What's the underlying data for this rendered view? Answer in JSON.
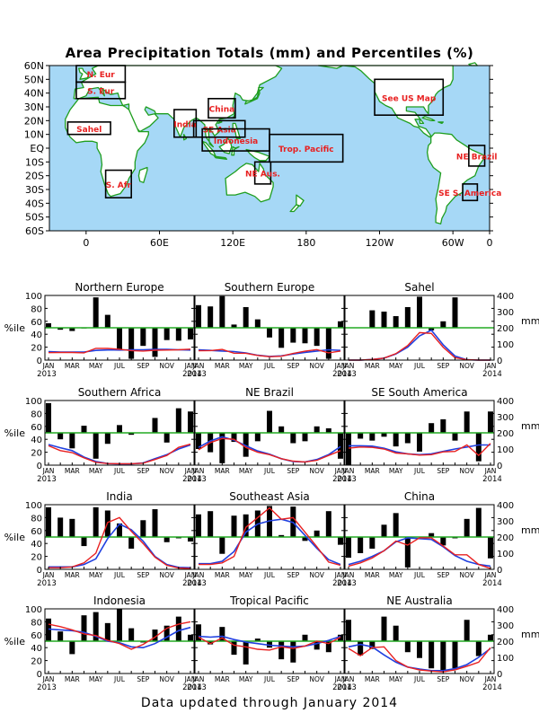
{
  "colors": {
    "ocean": "#a6d8f6",
    "land": "#ffffff",
    "coast": "#1f9e1f",
    "region_label": "#e82020",
    "bar": "#000000",
    "red_line": "#e82020",
    "blue_line": "#2040e0",
    "threshold_line": "#22aa22"
  },
  "footer": "Data updated through January 2014",
  "chart_data": [
    {
      "type": "map",
      "title": "Area Precipitation Totals (mm) and Percentiles (%)",
      "lat_ticks": [
        "60N",
        "50N",
        "40N",
        "30N",
        "20N",
        "10N",
        "EQ",
        "10S",
        "20S",
        "30S",
        "40S",
        "50S",
        "60S"
      ],
      "lon_ticks": [
        "0",
        "60E",
        "120E",
        "180",
        "120W",
        "60W",
        "0"
      ],
      "regions": [
        {
          "label": "N. Eur",
          "lon": [
            -8,
            32
          ],
          "lat": [
            48,
            60
          ]
        },
        {
          "label": "S. Eur",
          "lon": [
            -8,
            32
          ],
          "lat": [
            36,
            48
          ]
        },
        {
          "label": "Sahel",
          "lon": [
            -15,
            20
          ],
          "lat": [
            10,
            19
          ]
        },
        {
          "label": "India",
          "lon": [
            72,
            90
          ],
          "lat": [
            8,
            28
          ]
        },
        {
          "label": "China",
          "lon": [
            100,
            122
          ],
          "lat": [
            22,
            36
          ]
        },
        {
          "label": "SE Asia",
          "lon": [
            88,
            130
          ],
          "lat": [
            8,
            20
          ]
        },
        {
          "label": "Indonesia",
          "lon": [
            95,
            150
          ],
          "lat": [
            -2,
            14
          ]
        },
        {
          "label": "Trop. Pacific",
          "lon": [
            150,
            210
          ],
          "lat": [
            -10,
            10
          ]
        },
        {
          "label": "NE Aus.",
          "lon": [
            138,
            151
          ],
          "lat": [
            -26,
            -10
          ]
        },
        {
          "label": "S. Afr",
          "lon": [
            16,
            37
          ],
          "lat": [
            -36,
            -16
          ]
        },
        {
          "label": "See US Map",
          "lon": [
            236,
            292
          ],
          "lat": [
            24,
            50
          ]
        },
        {
          "label": "NE Brazil",
          "lon": [
            313,
            326
          ],
          "lat": [
            -13,
            2
          ]
        },
        {
          "label": "SE S. America",
          "lon": [
            308,
            320
          ],
          "lat": [
            -38,
            -26
          ]
        }
      ]
    },
    {
      "type": "bar",
      "title": "Northern Europe",
      "percentile": [
        57,
        47,
        45,
        49,
        97,
        70,
        17,
        2,
        22,
        5,
        31,
        30,
        32
      ],
      "red_mm": [
        46,
        47,
        47,
        45,
        73,
        72,
        67,
        59,
        56,
        61,
        62,
        64,
        68
      ],
      "blue_mm": [
        52,
        50,
        50,
        50,
        60,
        63,
        62,
        64,
        64,
        66,
        66,
        64,
        62
      ]
    },
    {
      "type": "bar",
      "title": "Southern Europe",
      "percentile": [
        85,
        83,
        99,
        55,
        82,
        63,
        35,
        19,
        27,
        26,
        22,
        2,
        60
      ],
      "red_mm": [
        58,
        59,
        66,
        43,
        42,
        29,
        21,
        24,
        41,
        55,
        65,
        45,
        56
      ],
      "blue_mm": [
        64,
        60,
        56,
        53,
        44,
        30,
        23,
        26,
        38,
        48,
        56,
        64,
        60
      ]
    },
    {
      "type": "bar",
      "title": "Sahel",
      "percentile": [
        null,
        null,
        77,
        75,
        68,
        82,
        98,
        46,
        60,
        97,
        50,
        null,
        null
      ],
      "red_mm": [
        0,
        0,
        4,
        12,
        40,
        90,
        170,
        165,
        80,
        15,
        2,
        0,
        0
      ],
      "blue_mm": [
        0,
        0,
        4,
        12,
        38,
        80,
        150,
        185,
        95,
        25,
        2,
        0,
        0
      ]
    },
    {
      "type": "bar",
      "title": "Southern Africa",
      "percentile": [
        96,
        40,
        26,
        61,
        10,
        33,
        62,
        47,
        50,
        73,
        35,
        88,
        83
      ],
      "red_mm": [
        120,
        90,
        78,
        45,
        18,
        10,
        9,
        9,
        12,
        35,
        60,
        110,
        130
      ],
      "blue_mm": [
        128,
        108,
        90,
        50,
        23,
        10,
        8,
        8,
        14,
        40,
        65,
        100,
        125
      ]
    },
    {
      "type": "bar",
      "title": "NE Brazil",
      "percentile": [
        25,
        20,
        3,
        36,
        13,
        37,
        84,
        60,
        34,
        37,
        60,
        57,
        10
      ],
      "red_mm": [
        95,
        140,
        165,
        160,
        110,
        80,
        65,
        40,
        25,
        20,
        30,
        60,
        90
      ],
      "blue_mm": [
        110,
        150,
        175,
        155,
        120,
        88,
        68,
        40,
        22,
        20,
        35,
        65,
        115
      ]
    },
    {
      "type": "bar",
      "title": "SE South America",
      "percentile": [
        0,
        41,
        38,
        44,
        29,
        34,
        21,
        65,
        71,
        38,
        83,
        6,
        83
      ],
      "red_mm": [
        105,
        112,
        110,
        100,
        75,
        70,
        62,
        65,
        82,
        85,
        125,
        60,
        135
      ],
      "blue_mm": [
        120,
        120,
        118,
        105,
        82,
        70,
        65,
        70,
        85,
        100,
        112,
        125,
        125
      ]
    },
    {
      "type": "bar",
      "title": "India",
      "percentile": [
        96,
        80,
        78,
        36,
        96,
        91,
        71,
        32,
        76,
        93,
        42,
        48,
        43
      ],
      "red_mm": [
        10,
        10,
        15,
        40,
        100,
        290,
        320,
        235,
        160,
        75,
        25,
        8,
        5
      ],
      "blue_mm": [
        15,
        15,
        15,
        30,
        65,
        190,
        280,
        245,
        175,
        80,
        30,
        12,
        10
      ]
    },
    {
      "type": "bar",
      "title": "Southeast Asia",
      "percentile": [
        85,
        90,
        24,
        83,
        85,
        91,
        98,
        53,
        97,
        44,
        60,
        90,
        38
      ],
      "red_mm": [
        30,
        30,
        40,
        80,
        260,
        320,
        380,
        310,
        320,
        230,
        140,
        45,
        25
      ],
      "blue_mm": [
        35,
        35,
        50,
        110,
        230,
        280,
        300,
        310,
        290,
        210,
        130,
        60,
        30
      ]
    },
    {
      "type": "bar",
      "title": "China",
      "percentile": [
        18,
        25,
        32,
        69,
        87,
        3,
        50,
        56,
        37,
        48,
        78,
        95,
        17
      ],
      "red_mm": [
        20,
        40,
        70,
        115,
        175,
        150,
        195,
        195,
        145,
        90,
        90,
        30,
        5
      ],
      "blue_mm": [
        30,
        50,
        80,
        115,
        170,
        195,
        190,
        185,
        140,
        85,
        50,
        30,
        20
      ]
    },
    {
      "type": "bar",
      "title": "Indonesia",
      "percentile": [
        85,
        65,
        30,
        90,
        95,
        78,
        100,
        70,
        48,
        68,
        74,
        88,
        60
      ],
      "red_mm": [
        305,
        290,
        270,
        245,
        235,
        205,
        185,
        150,
        180,
        225,
        280,
        305,
        320
      ],
      "blue_mm": [
        275,
        270,
        265,
        255,
        230,
        200,
        190,
        165,
        160,
        185,
        225,
        265,
        285
      ]
    },
    {
      "type": "bar",
      "title": "Tropical Pacific",
      "percentile": [
        76,
        45,
        72,
        29,
        14,
        54,
        40,
        22,
        17,
        60,
        37,
        33,
        60
      ],
      "red_mm": [
        225,
        185,
        220,
        175,
        165,
        150,
        145,
        165,
        155,
        170,
        200,
        185,
        225
      ],
      "blue_mm": [
        230,
        225,
        230,
        210,
        195,
        185,
        175,
        170,
        165,
        170,
        185,
        205,
        230
      ]
    },
    {
      "type": "bar",
      "title": "NE Australia",
      "percentile": [
        83,
        28,
        38,
        88,
        74,
        33,
        24,
        8,
        5,
        8,
        83,
        27,
        60
      ],
      "red_mm": [
        155,
        110,
        160,
        165,
        80,
        40,
        22,
        15,
        10,
        22,
        45,
        70,
        160
      ],
      "blue_mm": [
        165,
        180,
        165,
        115,
        70,
        40,
        28,
        18,
        18,
        30,
        55,
        100,
        155
      ]
    }
  ],
  "axis": {
    "left_ticks": [
      "0",
      "20",
      "40",
      "60",
      "80",
      "100"
    ],
    "right_ticks": [
      "0",
      "100",
      "200",
      "300",
      "400"
    ],
    "left_unit": "%ile",
    "right_unit": "mm",
    "month_ticks": [
      "JAN",
      "MAR",
      "MAY",
      "JUL",
      "SEP",
      "NOV",
      "JAN"
    ],
    "year_start": "2013",
    "year_end": "2014"
  }
}
